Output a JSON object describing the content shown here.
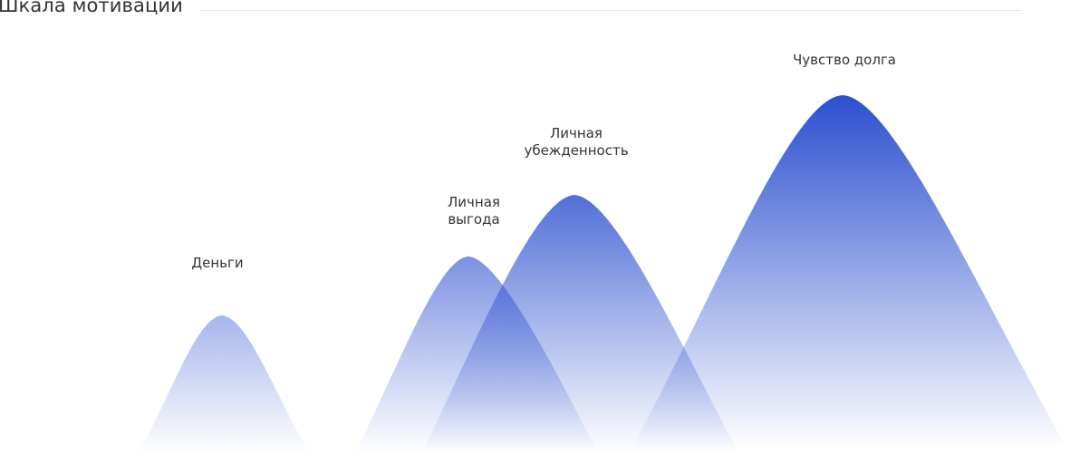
{
  "page": {
    "title": "Шкала мотивации"
  },
  "diagram": {
    "peaks": [
      {
        "id": "money",
        "label_lines": [
          "Деньги"
        ]
      },
      {
        "id": "benefit",
        "label_lines": [
          "Личная",
          "выгода"
        ]
      },
      {
        "id": "conviction",
        "label_lines": [
          "Личная",
          "убежденность"
        ]
      },
      {
        "id": "duty",
        "label_lines": [
          "Чувство долга"
        ]
      }
    ],
    "colors": {
      "peak_fill": "#2b4fcf",
      "text": "#333333",
      "rule": "#e6e6e6"
    }
  }
}
